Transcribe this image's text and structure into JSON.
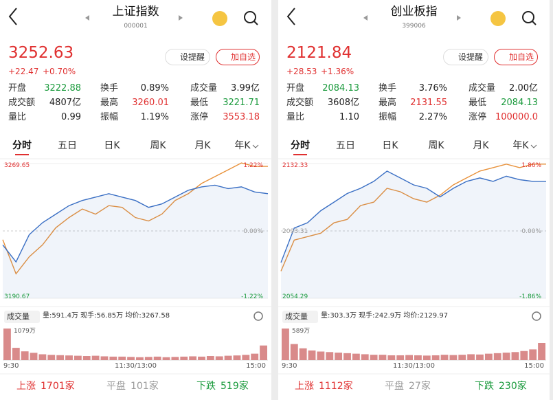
{
  "panels": [
    {
      "title": "上证指数",
      "code": "000001",
      "price": "3252.63",
      "change": "+22.47",
      "change_pct": "+0.70%",
      "alert_button": "设提醒",
      "watch_button": "加自选",
      "stats": [
        [
          {
            "label": "开盘",
            "value": "3222.88",
            "color": "#1a9a3c"
          },
          {
            "label": "换手",
            "value": "0.89%",
            "color": "#222222"
          },
          {
            "label": "成交量",
            "value": "3.99亿",
            "color": "#222222"
          }
        ],
        [
          {
            "label": "成交额",
            "value": "4807亿",
            "color": "#222222"
          },
          {
            "label": "最高",
            "value": "3260.01",
            "color": "#e03030"
          },
          {
            "label": "最低",
            "value": "3221.71",
            "color": "#1a9a3c"
          }
        ],
        [
          {
            "label": "量比",
            "value": "0.99",
            "color": "#222222"
          },
          {
            "label": "振幅",
            "value": "1.19%",
            "color": "#222222"
          },
          {
            "label": "涨停",
            "value": "3553.18",
            "color": "#e03030"
          }
        ]
      ],
      "tabs": [
        "分时",
        "五日",
        "日K",
        "周K",
        "月K",
        "年K"
      ],
      "chart": {
        "top_label": "3269.65",
        "top_pct": "1.22%",
        "mid_pct": "0.00%",
        "bottom_label": "3190.67",
        "bottom_pct": "-1.22%",
        "ylim": [
          3190.67,
          3269.65
        ],
        "price_line": {
          "color": "#3a6fc4",
          "values": [
            3222,
            3212,
            3228,
            3235,
            3240,
            3245,
            3248,
            3250,
            3252,
            3250,
            3248,
            3244,
            3246,
            3250,
            3254,
            3256,
            3257,
            3255,
            3256,
            3253,
            3252
          ]
        },
        "other_line": {
          "color": "#e8913a",
          "values": [
            3225,
            3205,
            3215,
            3222,
            3232,
            3238,
            3243,
            3240,
            3245,
            3244,
            3238,
            3236,
            3240,
            3248,
            3252,
            3258,
            3262,
            3266,
            3270,
            3268,
            3268
          ]
        }
      },
      "volume": {
        "selector": "成交量",
        "info": "量:591.4万 现手:56.85万 均价:3267.58",
        "max_label": "1079万",
        "color": "#d98a8a",
        "values": [
          1079,
          420,
          300,
          250,
          200,
          180,
          170,
          160,
          150,
          140,
          150,
          130,
          120,
          120,
          110,
          100,
          110,
          120,
          100,
          110,
          120,
          130,
          120,
          140,
          130,
          150,
          160,
          180,
          220,
          500
        ]
      },
      "times": [
        "9:30",
        "11:30/13:00",
        "15:00"
      ],
      "breadth": [
        {
          "label": "上涨",
          "value": "1701家",
          "color": "#e03030"
        },
        {
          "label": "平盘",
          "value": "101家",
          "color": "#9a9a9a"
        },
        {
          "label": "下跌",
          "value": "519家",
          "color": "#1a9a3c"
        }
      ]
    },
    {
      "title": "创业板指",
      "code": "399006",
      "price": "2121.84",
      "change": "+28.53",
      "change_pct": "+1.36%",
      "alert_button": "设提醒",
      "watch_button": "加自选",
      "stats": [
        [
          {
            "label": "开盘",
            "value": "2084.13",
            "color": "#1a9a3c"
          },
          {
            "label": "换手",
            "value": "3.76%",
            "color": "#222222"
          },
          {
            "label": "成交量",
            "value": "2.00亿",
            "color": "#222222"
          }
        ],
        [
          {
            "label": "成交额",
            "value": "3608亿",
            "color": "#222222"
          },
          {
            "label": "最高",
            "value": "2131.55",
            "color": "#e03030"
          },
          {
            "label": "最低",
            "value": "2084.13",
            "color": "#1a9a3c"
          }
        ],
        [
          {
            "label": "量比",
            "value": "1.10",
            "color": "#222222"
          },
          {
            "label": "振幅",
            "value": "2.27%",
            "color": "#222222"
          },
          {
            "label": "涨停",
            "value": "100000.0",
            "color": "#e03030"
          }
        ]
      ],
      "tabs": [
        "分时",
        "五日",
        "日K",
        "周K",
        "月K",
        "年K"
      ],
      "chart": {
        "top_label": "2132.33",
        "top_pct": "1.86%",
        "mid_label": "2093.31",
        "mid_pct": "0.00%",
        "bottom_label": "2054.29",
        "bottom_pct": "-1.86%",
        "ylim": [
          2054.29,
          2132.33
        ],
        "price_line": {
          "color": "#3a6fc4",
          "values": [
            2075,
            2095,
            2098,
            2105,
            2110,
            2115,
            2118,
            2122,
            2128,
            2124,
            2120,
            2118,
            2113,
            2118,
            2122,
            2124,
            2122,
            2125,
            2123,
            2122,
            2122
          ]
        },
        "other_line": {
          "color": "#e8913a",
          "values": [
            2070,
            2088,
            2090,
            2092,
            2098,
            2100,
            2108,
            2110,
            2118,
            2116,
            2112,
            2110,
            2114,
            2120,
            2124,
            2128,
            2130,
            2132,
            2130,
            2132,
            2132
          ]
        }
      },
      "volume": {
        "selector": "成交量",
        "info": "量:303.3万 现手:242.9万 均价:2129.97",
        "max_label": "589万",
        "color": "#d98a8a",
        "values": [
          589,
          300,
          220,
          180,
          160,
          150,
          140,
          130,
          120,
          110,
          100,
          100,
          90,
          90,
          95,
          90,
          85,
          90,
          100,
          95,
          100,
          110,
          105,
          120,
          130,
          140,
          150,
          170,
          200,
          320
        ]
      },
      "times": [
        "9:30",
        "11:30/13:00",
        "15:00"
      ],
      "breadth": [
        {
          "label": "上涨",
          "value": "1112家",
          "color": "#e03030"
        },
        {
          "label": "平盘",
          "value": "27家",
          "color": "#9a9a9a"
        },
        {
          "label": "下跌",
          "value": "230家",
          "color": "#1a9a3c"
        }
      ]
    }
  ]
}
